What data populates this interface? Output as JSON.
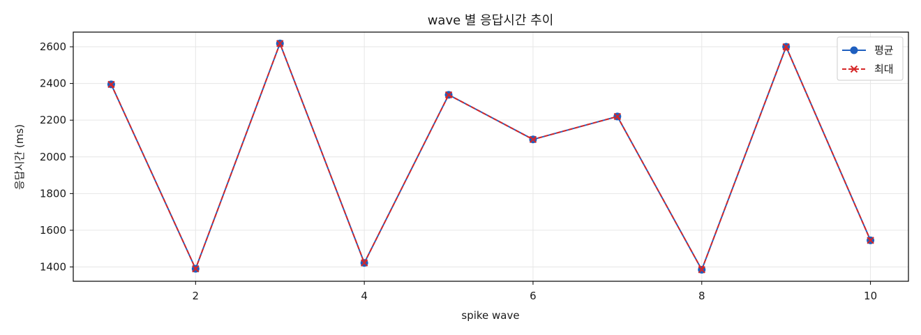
{
  "chart_data": {
    "type": "line",
    "title": "wave 별 응답시간 추이",
    "xlabel": "spike wave",
    "ylabel": "응답시간 (ms)",
    "x": [
      1,
      2,
      3,
      4,
      5,
      6,
      7,
      8,
      9,
      10
    ],
    "xlim": [
      0.55,
      10.45
    ],
    "ylim": [
      1322,
      2680
    ],
    "xticks": [
      2,
      4,
      6,
      8,
      10
    ],
    "yticks": [
      1400,
      1600,
      1800,
      2000,
      2200,
      2400,
      2600
    ],
    "grid": true,
    "legend_position": "top-right",
    "series": [
      {
        "name": "평균",
        "color": "#1f5fbf",
        "line_style": "solid",
        "marker": "circle",
        "values": [
          2395,
          1390,
          2618,
          1422,
          2338,
          2095,
          2220,
          1385,
          2600,
          1545
        ]
      },
      {
        "name": "최대",
        "color": "#d62728",
        "line_style": "dashed",
        "marker": "x",
        "values": [
          2395,
          1390,
          2618,
          1422,
          2338,
          2095,
          2220,
          1385,
          2600,
          1545
        ]
      }
    ]
  }
}
